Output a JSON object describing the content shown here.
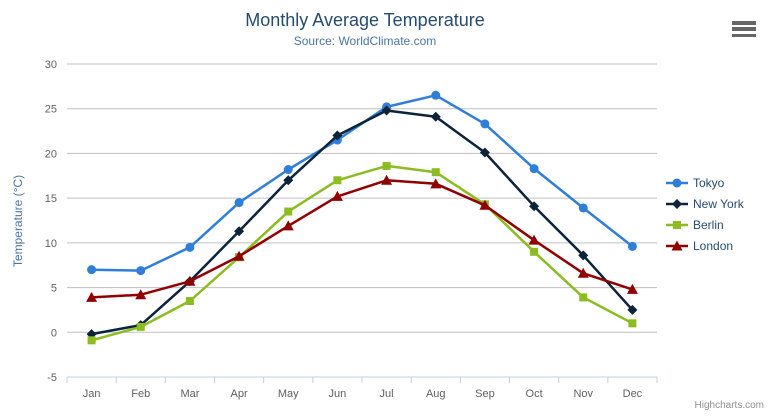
{
  "chart_data": {
    "type": "line",
    "title": "Monthly Average Temperature",
    "subtitle": "Source: WorldClimate.com",
    "xlabel": "",
    "ylabel": "Temperature (°C)",
    "ylim": [
      -5,
      30
    ],
    "ytick_step": 5,
    "grid": true,
    "legend_position": "right",
    "categories": [
      "Jan",
      "Feb",
      "Mar",
      "Apr",
      "May",
      "Jun",
      "Jul",
      "Aug",
      "Sep",
      "Oct",
      "Nov",
      "Dec"
    ],
    "series": [
      {
        "name": "Tokyo",
        "color": "#2f7ed8",
        "marker": "circle",
        "values": [
          7.0,
          6.9,
          9.5,
          14.5,
          18.2,
          21.5,
          25.2,
          26.5,
          23.3,
          18.3,
          13.9,
          9.6
        ]
      },
      {
        "name": "New York",
        "color": "#0d233a",
        "marker": "diamond",
        "values": [
          -0.2,
          0.8,
          5.7,
          11.3,
          17.0,
          22.0,
          24.8,
          24.1,
          20.1,
          14.1,
          8.6,
          2.5
        ]
      },
      {
        "name": "Berlin",
        "color": "#8bbc21",
        "marker": "square",
        "values": [
          -0.9,
          0.6,
          3.5,
          8.4,
          13.5,
          17.0,
          18.6,
          17.9,
          14.3,
          9.0,
          3.9,
          1.0
        ]
      },
      {
        "name": "London",
        "color": "#910000",
        "marker": "triangle",
        "values": [
          3.9,
          4.2,
          5.7,
          8.5,
          11.9,
          15.2,
          17.0,
          16.6,
          14.2,
          10.3,
          6.6,
          4.8
        ]
      }
    ]
  },
  "credits": {
    "label": "Highcharts.com"
  },
  "icons": {
    "export_menu": "hamburger-menu-icon"
  },
  "colors": {
    "title": "#274b6d",
    "subtitle": "#4d759e",
    "y_axis_title": "#4d759e",
    "axis_label": "#606060",
    "axis_line": "#c0d0e0",
    "grid_line": "#c0c0c0",
    "legend_text": "#274b6d",
    "credits_text": "#909090",
    "export_icon": "#666666",
    "background": "#ffffff"
  }
}
